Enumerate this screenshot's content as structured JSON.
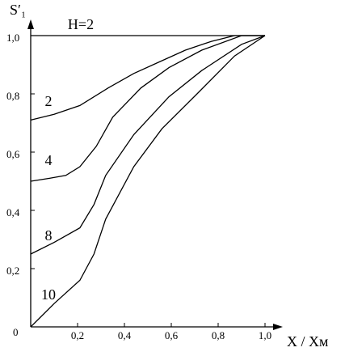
{
  "chart_data": {
    "type": "line",
    "y_label": "S′₁",
    "x_label": "X / Xм",
    "origin_label": "0",
    "xlim": [
      0,
      1.0
    ],
    "ylim": [
      0,
      1.0
    ],
    "xticks": [
      {
        "value": 0.2,
        "label": "0,2"
      },
      {
        "value": 0.4,
        "label": "0,4"
      },
      {
        "value": 0.6,
        "label": "0,6"
      },
      {
        "value": 0.8,
        "label": "0,8"
      },
      {
        "value": 1.0,
        "label": "1,0"
      }
    ],
    "yticks": [
      {
        "value": 0.2,
        "label": "0,2"
      },
      {
        "value": 0.4,
        "label": "0,4"
      },
      {
        "value": 0.6,
        "label": "0,6"
      },
      {
        "value": 0.8,
        "label": "0,8"
      },
      {
        "value": 1.0,
        "label": "1,0"
      }
    ],
    "series": [
      {
        "name": "H=2",
        "color": "#000000",
        "x": [
          0,
          1.0
        ],
        "values": [
          1.0,
          1.0
        ]
      },
      {
        "name": "2",
        "color": "#000000",
        "x": [
          0,
          0.1,
          0.21,
          0.33,
          0.44,
          0.55,
          0.66,
          0.77,
          0.87,
          1.0
        ],
        "values": [
          0.71,
          0.73,
          0.76,
          0.82,
          0.87,
          0.91,
          0.95,
          0.98,
          1.0,
          1.0
        ]
      },
      {
        "name": "4",
        "color": "#000000",
        "x": [
          0,
          0.08,
          0.15,
          0.21,
          0.28,
          0.35,
          0.47,
          0.59,
          0.73,
          0.9,
          1.0
        ],
        "values": [
          0.5,
          0.51,
          0.52,
          0.55,
          0.62,
          0.72,
          0.82,
          0.89,
          0.95,
          1.0,
          1.0
        ]
      },
      {
        "name": "8",
        "color": "#000000",
        "x": [
          0,
          0.1,
          0.21,
          0.27,
          0.32,
          0.44,
          0.59,
          0.73,
          0.9,
          1.0
        ],
        "values": [
          0.25,
          0.29,
          0.34,
          0.42,
          0.52,
          0.66,
          0.79,
          0.88,
          0.97,
          1.0
        ]
      },
      {
        "name": "10",
        "color": "#000000",
        "x": [
          0,
          0.1,
          0.21,
          0.27,
          0.32,
          0.44,
          0.56,
          0.71,
          0.87,
          1.0
        ],
        "values": [
          0,
          0.08,
          0.16,
          0.25,
          0.37,
          0.55,
          0.68,
          0.8,
          0.93,
          1.0
        ]
      }
    ]
  }
}
